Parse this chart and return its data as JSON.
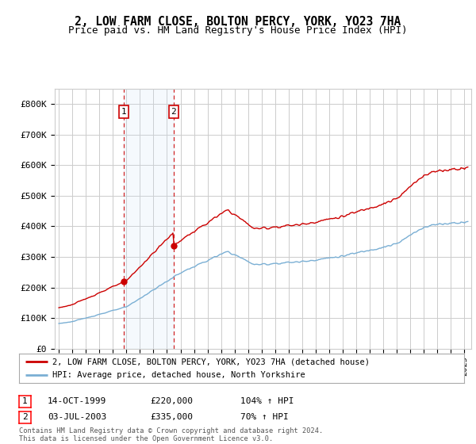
{
  "title": "2, LOW FARM CLOSE, BOLTON PERCY, YORK, YO23 7HA",
  "subtitle": "Price paid vs. HM Land Registry's House Price Index (HPI)",
  "ylim": [
    0,
    850000
  ],
  "yticks": [
    0,
    100000,
    200000,
    300000,
    400000,
    500000,
    600000,
    700000,
    800000
  ],
  "ytick_labels": [
    "£0",
    "£100K",
    "£200K",
    "£300K",
    "£400K",
    "£500K",
    "£600K",
    "£700K",
    "£800K"
  ],
  "xlim_start": 1994.7,
  "xlim_end": 2025.5,
  "sale1_x": 1999.79,
  "sale1_y": 220000,
  "sale2_x": 2003.5,
  "sale2_y": 335000,
  "hpi_color": "#7aafd4",
  "sale_color": "#cc0000",
  "background_color": "#ffffff",
  "grid_color": "#cccccc",
  "highlight_color": "#ddeeff",
  "legend_label_sale": "2, LOW FARM CLOSE, BOLTON PERCY, YORK, YO23 7HA (detached house)",
  "legend_label_hpi": "HPI: Average price, detached house, North Yorkshire",
  "sale1_date": "14-OCT-1999",
  "sale1_price": "£220,000",
  "sale1_hpi": "104% ↑ HPI",
  "sale2_date": "03-JUL-2003",
  "sale2_price": "£335,000",
  "sale2_hpi": "70% ↑ HPI",
  "footer": "Contains HM Land Registry data © Crown copyright and database right 2024.\nThis data is licensed under the Open Government Licence v3.0."
}
